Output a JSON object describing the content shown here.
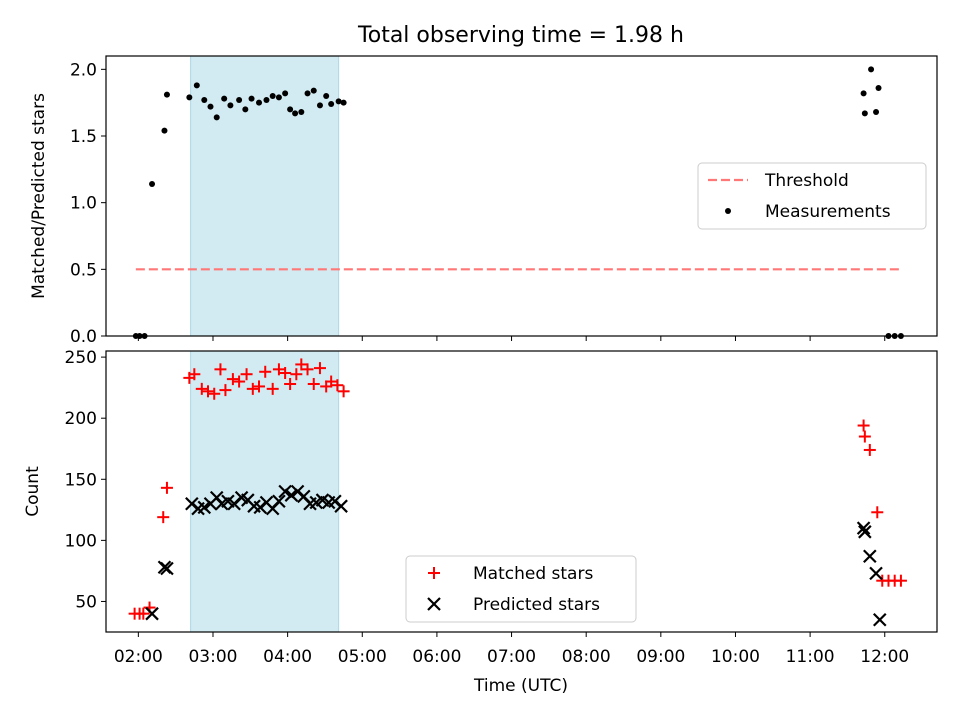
{
  "title": "Total observing time = 1.98 h",
  "colors": {
    "threshold": "#ff7777",
    "measurements": "#000000",
    "matched": "#ff0000",
    "predicted": "#000000",
    "span": "#add8e6"
  },
  "chart_data": [
    {
      "type": "scatter",
      "panel": "top",
      "ylabel": "Matched/Predicted stars",
      "xlabel": "",
      "ylim": [
        0,
        2.1
      ],
      "yticks": [
        0.0,
        0.5,
        1.0,
        1.5,
        2.0
      ],
      "ytick_labels": [
        "0.0",
        "0.5",
        "1.0",
        "1.5",
        "2.0"
      ],
      "shaded_span": [
        "02:42",
        "04:41"
      ],
      "legend_placement": "center-right",
      "threshold": {
        "name": "Threshold",
        "y": 0.5,
        "x_range": [
          "01:58",
          "12:13"
        ]
      },
      "series": [
        {
          "name": "Measurements",
          "x": [
            "01:58",
            "02:01",
            "02:05",
            "02:11",
            "02:21",
            "02:23",
            "02:41",
            "02:47",
            "02:53",
            "02:58",
            "03:03",
            "03:09",
            "03:14",
            "03:21",
            "03:26",
            "03:31",
            "03:37",
            "03:43",
            "03:48",
            "03:53",
            "03:58",
            "04:02",
            "04:06",
            "04:11",
            "04:16",
            "04:21",
            "04:26",
            "04:31",
            "04:35",
            "04:41",
            "04:45",
            "11:43",
            "11:44",
            "11:49",
            "11:53",
            "11:55",
            "12:03",
            "12:08",
            "12:13"
          ],
          "y": [
            0.0,
            0.0,
            0.0,
            1.14,
            1.54,
            1.81,
            1.79,
            1.88,
            1.77,
            1.72,
            1.64,
            1.78,
            1.73,
            1.77,
            1.7,
            1.78,
            1.75,
            1.77,
            1.8,
            1.79,
            1.82,
            1.7,
            1.67,
            1.68,
            1.82,
            1.84,
            1.73,
            1.8,
            1.74,
            1.76,
            1.75,
            1.82,
            1.67,
            2.0,
            1.68,
            1.86,
            0.0,
            0.0,
            0.0
          ]
        }
      ]
    },
    {
      "type": "scatter",
      "panel": "bottom",
      "ylabel": "Count",
      "xlabel": "Time (UTC)",
      "ylim": [
        25,
        255
      ],
      "yticks": [
        50,
        100,
        150,
        200,
        250
      ],
      "ytick_labels": [
        "50",
        "100",
        "150",
        "200",
        "250"
      ],
      "xlim": [
        "01:34",
        "12:42"
      ],
      "xticks": [
        "02:00",
        "03:00",
        "04:00",
        "05:00",
        "06:00",
        "07:00",
        "08:00",
        "09:00",
        "10:00",
        "11:00",
        "12:00"
      ],
      "xtick_labels": [
        "02:00",
        "03:00",
        "04:00",
        "05:00",
        "06:00",
        "07:00",
        "08:00",
        "09:00",
        "10:00",
        "11:00",
        "12:00"
      ],
      "shaded_span": [
        "02:42",
        "04:41"
      ],
      "legend_placement": "lower-center",
      "series": [
        {
          "name": "Matched stars",
          "marker": "plus",
          "x": [
            "01:57",
            "02:01",
            "02:04",
            "02:09",
            "02:20",
            "02:23",
            "02:41",
            "02:45",
            "02:51",
            "02:56",
            "03:01",
            "03:06",
            "03:10",
            "03:16",
            "03:21",
            "03:27",
            "03:32",
            "03:37",
            "03:42",
            "03:48",
            "03:53",
            "03:58",
            "04:02",
            "04:07",
            "04:11",
            "04:16",
            "04:21",
            "04:26",
            "04:31",
            "04:35",
            "04:40",
            "04:45",
            "11:43",
            "11:44",
            "11:48",
            "11:54",
            "11:58",
            "12:03",
            "12:08",
            "12:13"
          ],
          "y": [
            40,
            40,
            40,
            45,
            119,
            143,
            233,
            236,
            224,
            222,
            220,
            240,
            223,
            232,
            230,
            236,
            224,
            226,
            238,
            224,
            240,
            237,
            228,
            236,
            244,
            240,
            228,
            241,
            226,
            230,
            227,
            222,
            194,
            185,
            174,
            123,
            67,
            67,
            67,
            67
          ],
          "ys_note": ""
        },
        {
          "name": "Predicted stars",
          "marker": "x",
          "x": [
            "02:11",
            "02:21",
            "02:23",
            "02:43",
            "02:48",
            "02:53",
            "02:58",
            "03:03",
            "03:07",
            "03:12",
            "03:17",
            "03:23",
            "03:28",
            "03:33",
            "03:38",
            "03:43",
            "03:48",
            "03:53",
            "03:58",
            "04:03",
            "04:08",
            "04:13",
            "04:18",
            "04:23",
            "04:28",
            "04:33",
            "04:38",
            "04:43",
            "11:43",
            "11:44",
            "11:48",
            "11:53",
            "11:56"
          ],
          "y": [
            40,
            78,
            77,
            130,
            126,
            127,
            130,
            135,
            130,
            132,
            130,
            135,
            133,
            128,
            127,
            131,
            126,
            132,
            140,
            137,
            140,
            136,
            130,
            131,
            133,
            131,
            132,
            128,
            110,
            107,
            87,
            73,
            35
          ]
        }
      ]
    }
  ]
}
